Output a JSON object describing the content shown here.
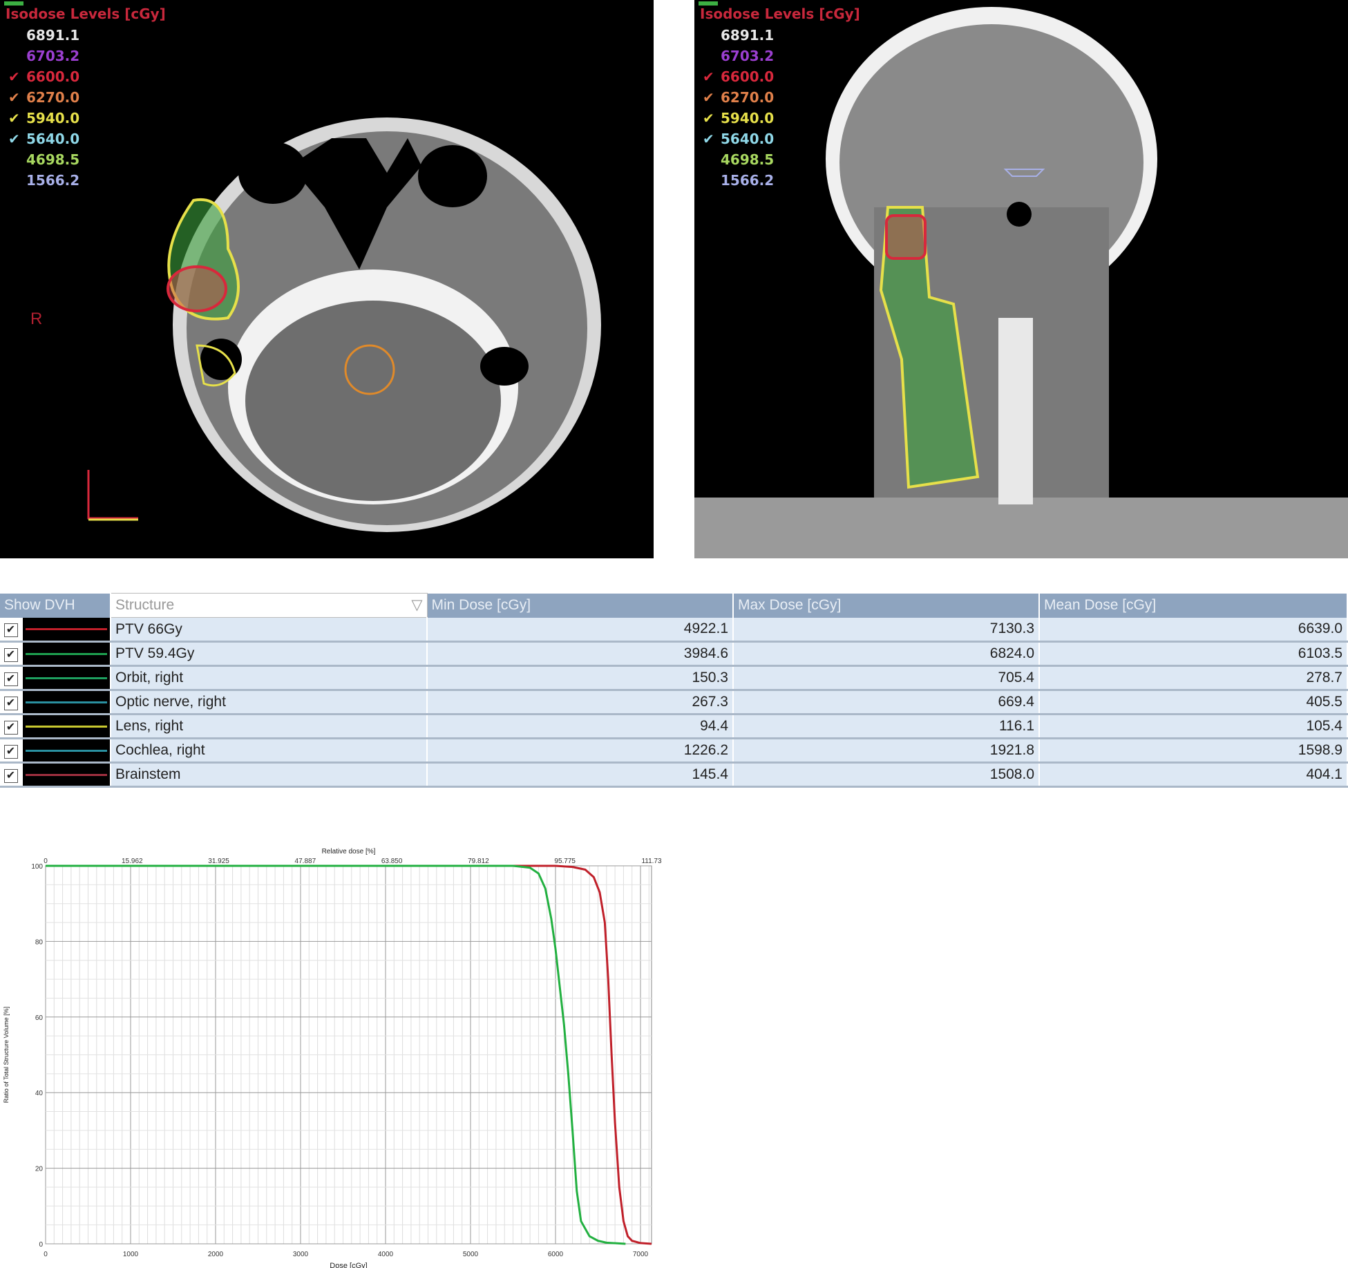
{
  "isodose": {
    "title": "Isodose Levels [cGy]",
    "levels": [
      {
        "value": "6891.1",
        "color": "#e8e8e8",
        "checked": false
      },
      {
        "value": "6703.2",
        "color": "#9b3fd0",
        "checked": false
      },
      {
        "value": "6600.0",
        "color": "#d8283c",
        "checked": true
      },
      {
        "value": "6270.0",
        "color": "#e0804a",
        "checked": true
      },
      {
        "value": "5940.0",
        "color": "#e6e04a",
        "checked": true
      },
      {
        "value": "5640.0",
        "color": "#8fd8e8",
        "checked": true
      },
      {
        "value": "4698.5",
        "color": "#a8d860",
        "checked": false
      },
      {
        "value": "1566.2",
        "color": "#a8b0e8",
        "checked": false
      }
    ]
  },
  "axial": {
    "orientation_label": "R"
  },
  "table": {
    "headers": [
      "Show DVH",
      "Structure",
      "Min Dose [cGy]",
      "Max Dose [cGy]",
      "Mean Dose [cGy]"
    ],
    "rows": [
      {
        "checked": true,
        "color": "#c0202a",
        "name": "PTV 66Gy",
        "min": "4922.1",
        "max": "7130.3",
        "mean": "6639.0"
      },
      {
        "checked": true,
        "color": "#1ea050",
        "name": "PTV 59.4Gy",
        "min": "3984.6",
        "max": "6824.0",
        "mean": "6103.5"
      },
      {
        "checked": true,
        "color": "#1ea060",
        "name": "Orbit, right",
        "min": "150.3",
        "max": "705.4",
        "mean": "278.7"
      },
      {
        "checked": true,
        "color": "#2a90a0",
        "name": "Optic nerve, right",
        "min": "267.3",
        "max": "669.4",
        "mean": "405.5"
      },
      {
        "checked": true,
        "color": "#c8c830",
        "name": "Lens, right",
        "min": "94.4",
        "max": "116.1",
        "mean": "105.4"
      },
      {
        "checked": true,
        "color": "#2a90a0",
        "name": "Cochlea, right",
        "min": "1226.2",
        "max": "1921.8",
        "mean": "1598.9"
      },
      {
        "checked": true,
        "color": "#a03040",
        "name": "Brainstem",
        "min": "145.4",
        "max": "1508.0",
        "mean": "404.1"
      }
    ]
  },
  "chart_data": {
    "type": "line",
    "title": "",
    "xlabel": "Dose [cGy]",
    "ylabel": "Ratio of Total Structure Volume [%]",
    "x2label": "Relative dose [%]",
    "x2ticks": [
      "0",
      "15.962",
      "31.925",
      "47.887",
      "63.850",
      "79.812",
      "95.775",
      "111.73"
    ],
    "xlim": [
      0,
      7130
    ],
    "ylim": [
      0,
      100
    ],
    "xticks": [
      0,
      1000,
      2000,
      3000,
      4000,
      5000,
      6000,
      7000
    ],
    "yticks": [
      0,
      20,
      40,
      60,
      80,
      100
    ],
    "grid": true,
    "series": [
      {
        "color": "#c0202a",
        "x": [
          0,
          5000,
          6000,
          6200,
          6350,
          6450,
          6520,
          6580,
          6620,
          6660,
          6700,
          6750,
          6800,
          6850,
          6900,
          7000,
          7130
        ],
        "y": [
          100,
          100,
          100,
          99.7,
          99,
          97,
          93,
          85,
          70,
          50,
          32,
          15,
          6,
          2,
          0.8,
          0.2,
          0
        ]
      },
      {
        "color": "#22b040",
        "x": [
          0,
          5500,
          5700,
          5800,
          5880,
          5950,
          6000,
          6050,
          6100,
          6150,
          6200,
          6250,
          6300,
          6400,
          6500,
          6600,
          6824
        ],
        "y": [
          100,
          100,
          99.5,
          98,
          94,
          86,
          78,
          68,
          58,
          45,
          30,
          14,
          6,
          2,
          0.8,
          0.3,
          0
        ]
      }
    ]
  }
}
